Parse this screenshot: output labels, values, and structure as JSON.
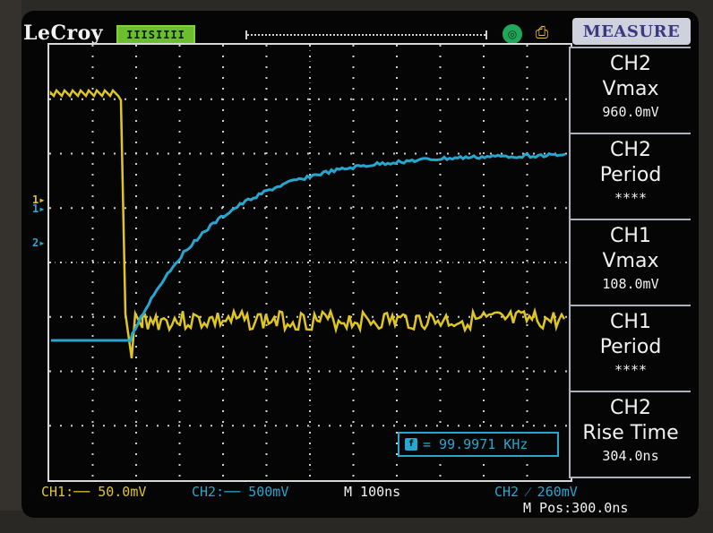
{
  "header": {
    "brand": "LeCroy",
    "status": "IIISIIII",
    "measure_title": "MEASURE"
  },
  "colors": {
    "ch1": "#e0c71f",
    "ch2": "#27a7cf",
    "grid": "#cfcfcf",
    "panel_border": "#aeb0bc"
  },
  "icons": {
    "trigger_marker": "down-arrow-icon",
    "run_status": "circle-status-icon",
    "print": "print-icon"
  },
  "waveforms": {
    "ch1": {
      "label": "1",
      "level_marker": "1"
    },
    "ch2": {
      "label": "2",
      "level_marker": "2"
    }
  },
  "measurements": [
    {
      "channel": "CH2",
      "name": "Vmax",
      "value": "960.0mV"
    },
    {
      "channel": "CH2",
      "name": "Period",
      "value": "****"
    },
    {
      "channel": "CH1",
      "name": "Vmax",
      "value": "108.0mV"
    },
    {
      "channel": "CH1",
      "name": "Period",
      "value": "****"
    },
    {
      "channel": "CH2",
      "name": "Rise Time",
      "value": "304.0ns"
    }
  ],
  "frequency": {
    "icon": "f",
    "text": "= 99.9971 KHz"
  },
  "footer": {
    "ch1": "CH1:── 50.0mV",
    "ch2": "CH2:── 500mV",
    "timebase": "M 100ns",
    "trigger": "CH2 ⁄ 260mV",
    "mpos": "M Pos:300.0ns"
  }
}
